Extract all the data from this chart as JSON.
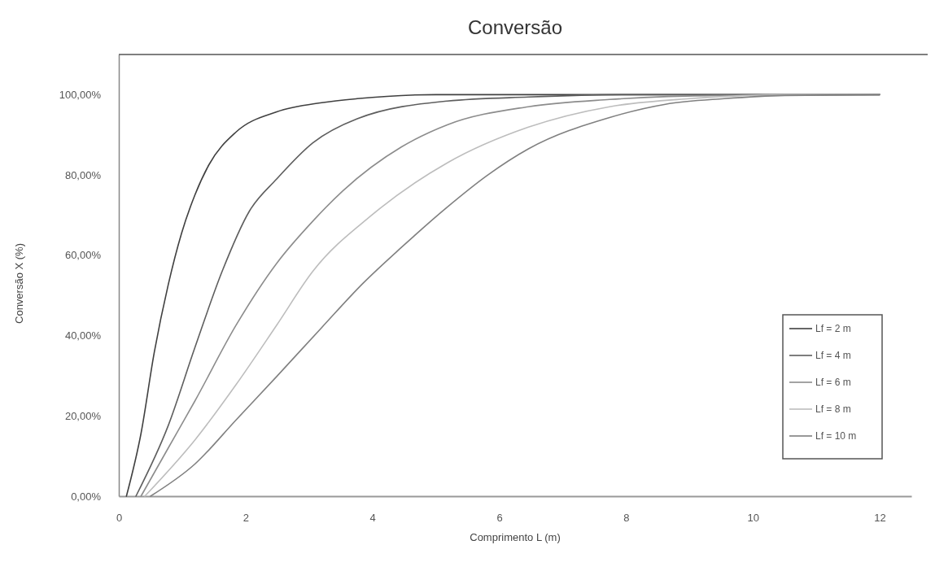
{
  "chart_data": {
    "type": "line",
    "title": "Conversão",
    "xlabel": "Comprimento L (m)",
    "ylabel": "Conversão X (%)",
    "xlim": [
      0,
      12.5
    ],
    "xticks": [
      0,
      2,
      4,
      6,
      8,
      10,
      12
    ],
    "ylim": [
      0,
      110
    ],
    "yticks": [
      {
        "value": 0,
        "label": "0,00%"
      },
      {
        "value": 20,
        "label": "20,00%"
      },
      {
        "value": 40,
        "label": "40,00%"
      },
      {
        "value": 60,
        "label": "60,00%"
      },
      {
        "value": 80,
        "label": "80,00%"
      },
      {
        "value": 100,
        "label": "100,00%"
      }
    ],
    "grid": false,
    "legend": "bottom right",
    "line_style": "solid",
    "marker": "none",
    "series": [
      {
        "name": "Lf = 2 m",
        "color": "#404040",
        "x": [
          0.12,
          0.35,
          0.56,
          0.78,
          0.99,
          1.2,
          1.42,
          1.85,
          2.49,
          3.2,
          3.76,
          5,
          7,
          12
        ],
        "values": [
          0,
          15.6,
          35.9,
          52.7,
          65.5,
          75,
          82.5,
          90.7,
          95.7,
          98,
          99,
          100,
          100,
          100
        ]
      },
      {
        "name": "Lf = 4 m",
        "color": "#5e5e5e",
        "x": [
          0.27,
          0.78,
          1.2,
          1.63,
          2.06,
          2.49,
          3.06,
          3.76,
          5.18,
          6.46,
          8,
          12
        ],
        "values": [
          0,
          17.6,
          37,
          56,
          71,
          79,
          88,
          94,
          98.4,
          99.4,
          100,
          100
        ]
      },
      {
        "name": "Lf = 6 m",
        "color": "#8c8c8c",
        "x": [
          0.35,
          0.78,
          1.2,
          1.85,
          2.49,
          3.06,
          3.53,
          4.46,
          5.18,
          6.46,
          7.74,
          9.5,
          12
        ],
        "values": [
          0,
          12,
          23.7,
          42.6,
          58,
          68.5,
          76,
          87,
          92.5,
          97,
          98.8,
          99.8,
          100
        ]
      },
      {
        "name": "Lf = 8 m",
        "color": "#bdbdbd",
        "x": [
          0.41,
          1.2,
          1.85,
          2.49,
          3.06,
          3.99,
          5.18,
          6.46,
          7.74,
          9,
          10.5,
          12
        ],
        "values": [
          0,
          14,
          27.8,
          42.6,
          56,
          70,
          83,
          91.9,
          97,
          99,
          100,
          100
        ]
      },
      {
        "name": "Lf = 10 m",
        "color": "#808080",
        "x": [
          0.5,
          1.2,
          1.85,
          2.49,
          3.2,
          3.85,
          4.46,
          5.18,
          5.82,
          6.46,
          7.74,
          8.62,
          9.55,
          10.5,
          12
        ],
        "values": [
          0,
          8,
          19,
          29.8,
          42,
          53,
          62,
          72,
          80,
          86.5,
          94.3,
          97.6,
          99,
          99.8,
          100
        ]
      }
    ]
  }
}
